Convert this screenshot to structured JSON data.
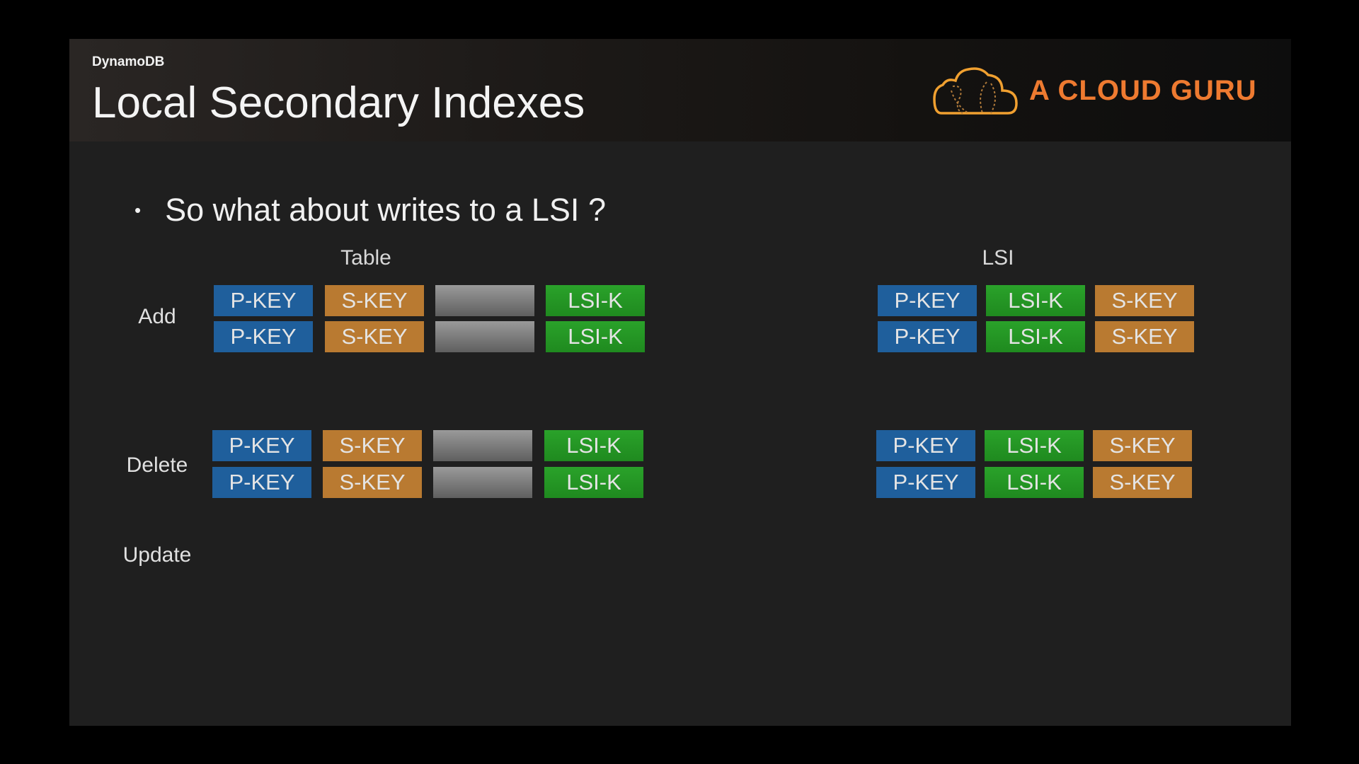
{
  "header": {
    "subtitle": "DynamoDB",
    "title": "Local Secondary Indexes",
    "logo_text": "A CLOUD GURU"
  },
  "bullet": "So what about writes to a LSI ?",
  "columns": {
    "table": "Table",
    "lsi": "LSI"
  },
  "rows": {
    "add": "Add",
    "delete": "Delete",
    "update": "Update"
  },
  "keys": {
    "pkey": "P-KEY",
    "skey": "S-KEY",
    "lsik": "LSI-K"
  },
  "colors": {
    "pkey": "#1f5f9c",
    "skey": "#b97a31",
    "lsik": "#249a24",
    "logo": "#ee7a30"
  }
}
